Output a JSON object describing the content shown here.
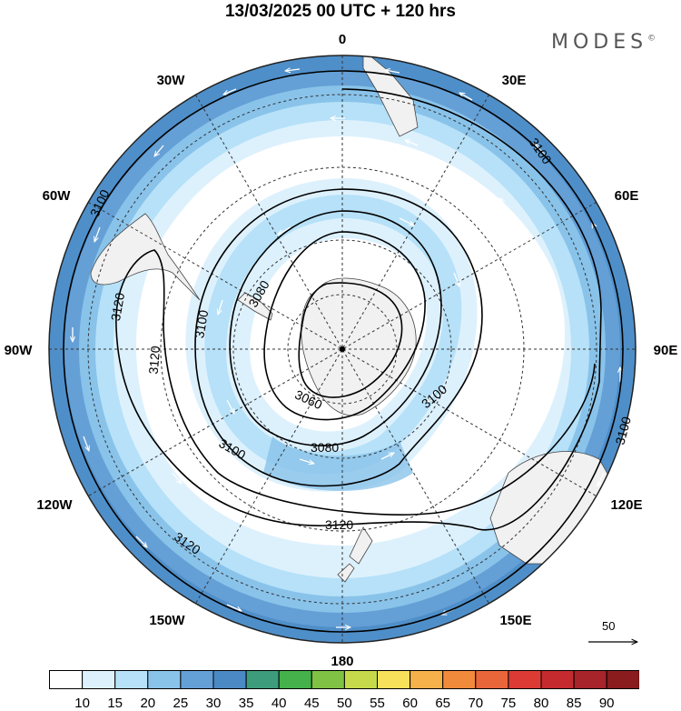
{
  "title": "13/03/2025  00 UTC  + 120 hrs",
  "brand": "MODES",
  "brand_mark": "©",
  "longitude_labels": {
    "n": "0",
    "ne": "30E",
    "e60": "60E",
    "e90": "90E",
    "e120": "120E",
    "e150": "150E",
    "s": "180",
    "w150": "150W",
    "w120": "120W",
    "w90": "90W",
    "w60": "60W",
    "w30": "30W"
  },
  "contour_labels": {
    "c1": "3100",
    "c2": "3100",
    "c3": "3120",
    "c4": "3120",
    "c5": "3080",
    "c6": "3100",
    "c7": "3060",
    "c8": "3100",
    "c9": "3080",
    "c10": "3100",
    "c11": "3120",
    "c12": "3120",
    "c13": "3100"
  },
  "reference_vector": "50",
  "colorbar": {
    "ticks": [
      "10",
      "15",
      "20",
      "25",
      "30",
      "35",
      "40",
      "45",
      "50",
      "55",
      "60",
      "65",
      "70",
      "75",
      "80",
      "85",
      "90"
    ],
    "colors": [
      "#ffffff",
      "#ddf1fd",
      "#b6e1f8",
      "#89c3ea",
      "#649fd6",
      "#4b89c4",
      "#3d9c7c",
      "#45b14a",
      "#7fc244",
      "#c6d94a",
      "#f7e05a",
      "#f6b14a",
      "#f28a3b",
      "#e9653a",
      "#dc3b35",
      "#c42a2e",
      "#a6242a",
      "#8a1c1e"
    ]
  }
}
